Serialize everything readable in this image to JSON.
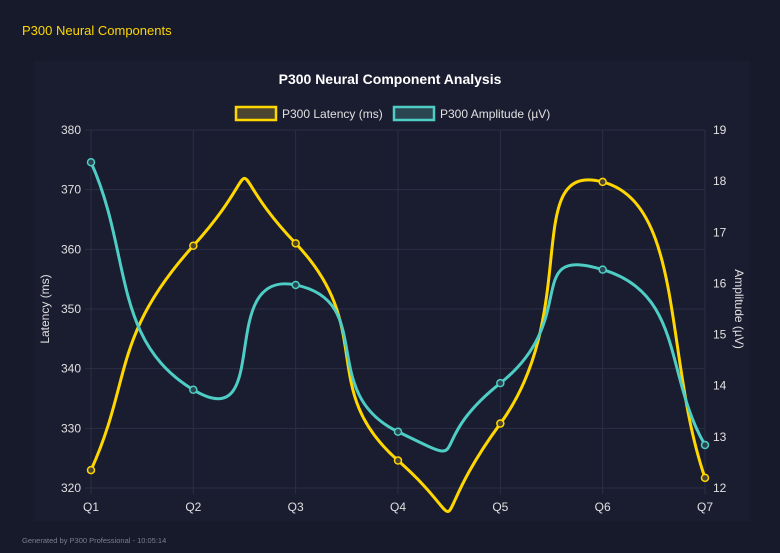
{
  "header": {
    "title": "P300 Neural Components"
  },
  "footer": {
    "text": "Generated by P300 Professional - 10:05:14"
  },
  "colors": {
    "latency": "#ffd700",
    "amplitude": "#4ecdc4",
    "background": "#161a2b"
  },
  "chart_data": {
    "type": "line",
    "title": "P300 Neural Component Analysis",
    "categories": [
      "Q1",
      "Q2",
      "Q3",
      "Q4",
      "Q5",
      "Q6",
      "Q7"
    ],
    "series": [
      {
        "name": "P300 Latency (ms)",
        "axis": "left",
        "values": [
          323.0,
          360.6,
          361.0,
          324.6,
          330.8,
          371.3,
          321.7
        ]
      },
      {
        "name": "P300 Amplitude (µV)",
        "axis": "right",
        "values": [
          18.37,
          13.92,
          15.97,
          13.1,
          14.05,
          16.27,
          12.84
        ]
      }
    ],
    "ylabel": "Latency (ms)",
    "y2label": "Amplitude (µV)",
    "ylim": [
      320,
      380
    ],
    "y2lim": [
      12,
      19
    ],
    "yticks": [
      "320",
      "330",
      "340",
      "350",
      "360",
      "370",
      "380"
    ],
    "y2ticks": [
      "12",
      "13",
      "14",
      "15",
      "16",
      "17",
      "18",
      "19"
    ],
    "grid": true,
    "legend": "top"
  }
}
